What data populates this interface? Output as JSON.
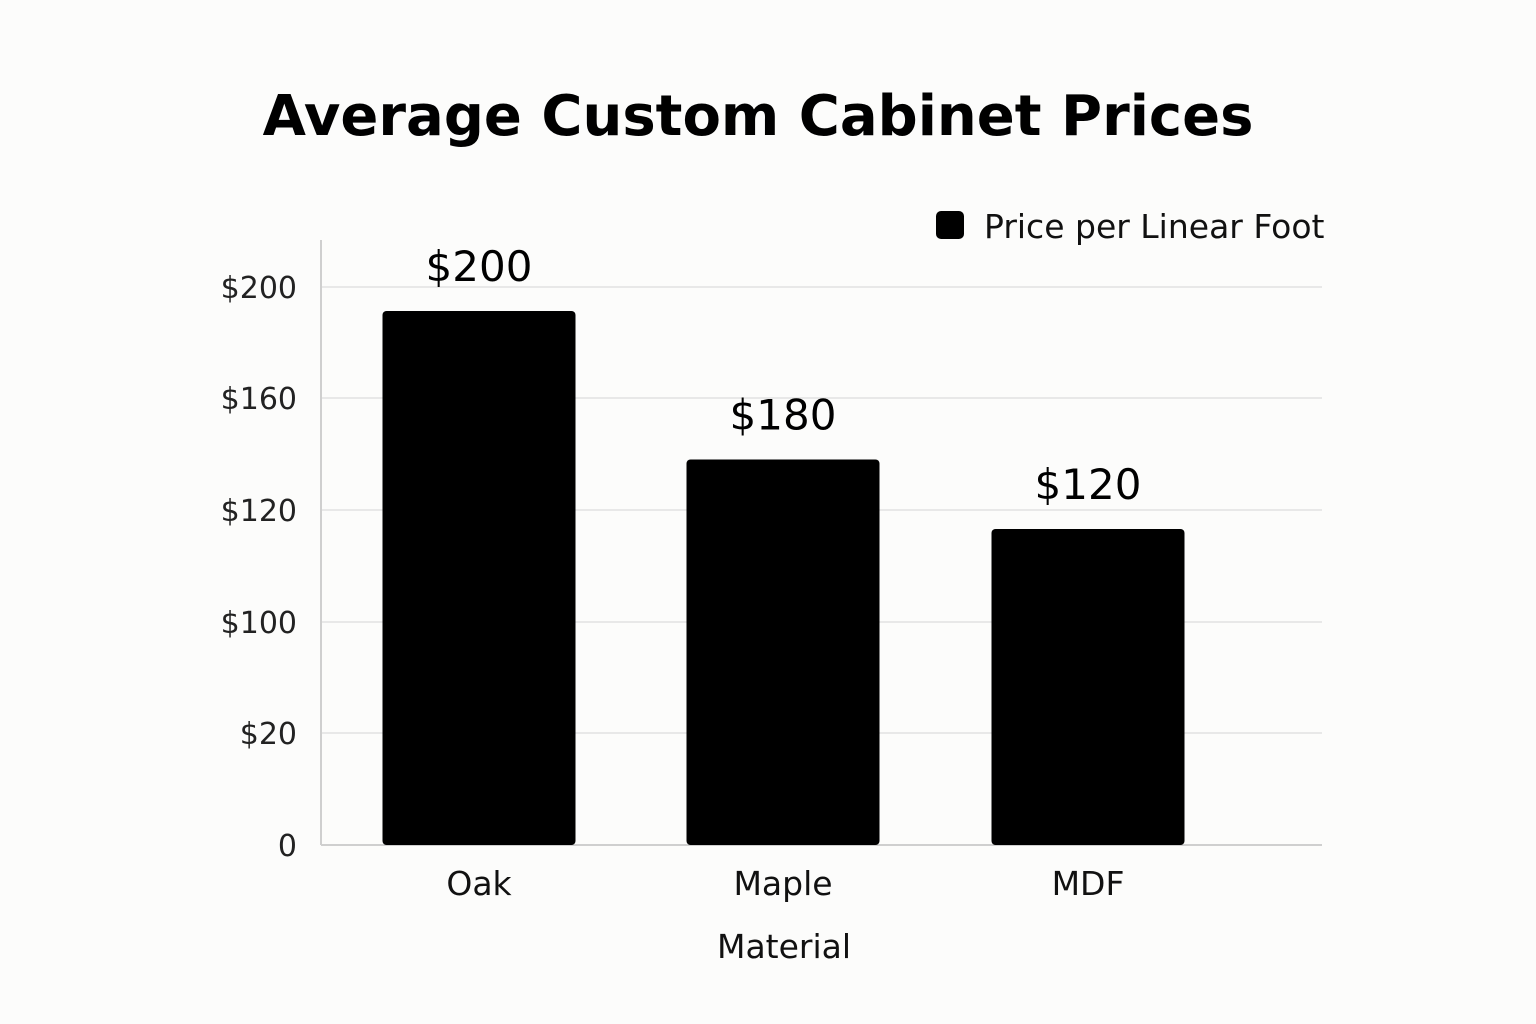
{
  "chart_data": {
    "type": "bar",
    "title": "Average Custom Cabinet Prices",
    "xlabel": "Material",
    "ylabel": "",
    "categories": [
      "Oak",
      "Maple",
      "MDF"
    ],
    "series": [
      {
        "name": "Price per Linear Foot",
        "values": [
          200,
          180,
          120
        ],
        "color": "#000000"
      }
    ],
    "data_labels": [
      "$200",
      "$180",
      "$120"
    ],
    "y_ticks": [
      {
        "value": 0,
        "label": "0"
      },
      {
        "value": 20,
        "label": "$20"
      },
      {
        "value": 100,
        "label": "$100"
      },
      {
        "value": 120,
        "label": "$120"
      },
      {
        "value": 160,
        "label": "$160"
      },
      {
        "value": 200,
        "label": "$200"
      }
    ],
    "ylim": [
      0,
      200
    ],
    "grid": true,
    "legend_position": "top-right"
  }
}
